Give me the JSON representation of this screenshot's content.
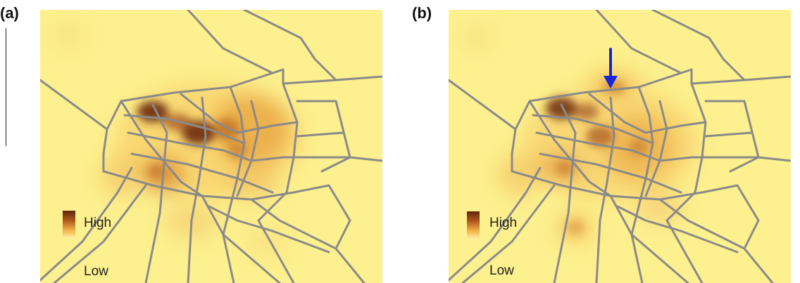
{
  "figure": {
    "panels": [
      {
        "id": "a",
        "label": "(a)",
        "legend": {
          "high_label": "High",
          "low_label": "Low"
        },
        "annotation_arrow": false
      },
      {
        "id": "b",
        "label": "(b)",
        "legend": {
          "high_label": "High",
          "low_label": "Low"
        },
        "annotation_arrow": true
      }
    ],
    "colors": {
      "background": "#fdf08e",
      "low": "#fff6b0",
      "mid": "#f2b34a",
      "high": "#5e240c",
      "roads": "#8a8a8a",
      "arrow": "#1b25d8"
    }
  }
}
